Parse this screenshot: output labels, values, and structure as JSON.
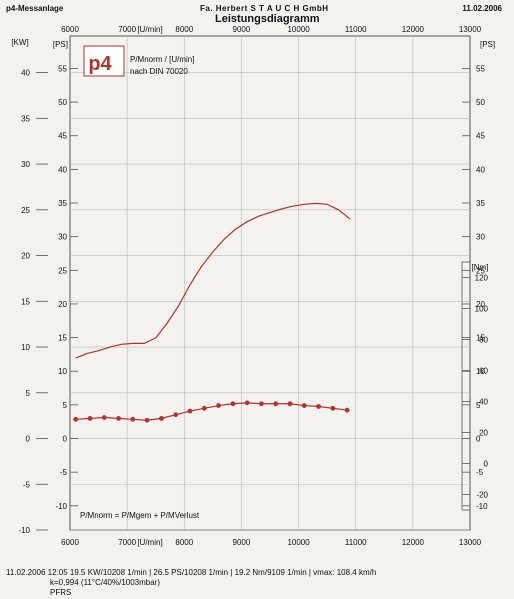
{
  "header": {
    "left": "p4-Messanlage",
    "center": "Fa. Herbert  S T A U C H  GmbH",
    "right": "11.02.2006",
    "title": "Leistungsdiagramm"
  },
  "legend_box": {
    "line1": "P/Mnorm / [U/min]",
    "line2": "nach DIN 70020",
    "logo_text": "p4"
  },
  "formula": "P/Mnorm = P/Mgem + P/MVerlust",
  "footer": {
    "line1": "11.02.2006  12:05  19.5 KW/10208 1/min  |  26.5 PS/10208 1/min  |  19.2 Nm/9109 1/min  |  vmax: 108.4 km/h",
    "line2": "k=0,994 (11°C/40%/1003mbar)",
    "line3": "PFRS"
  },
  "chart_data": {
    "type": "line",
    "x_unit_label": "[U/min]",
    "x_ticks": [
      "6000",
      "7000",
      "8000",
      "9000",
      "10000",
      "11000",
      "12000",
      "13000"
    ],
    "xlim": [
      6000,
      13000
    ],
    "left_outer_axis": {
      "label": "[KW]",
      "ticks": [
        "40",
        "35",
        "30",
        "25",
        "20",
        "15",
        "10",
        "5",
        "0",
        "-5",
        "-10"
      ],
      "ylim": [
        -10,
        44
      ]
    },
    "left_inner_axis": {
      "label": "[PS]",
      "ticks": [
        "55",
        "50",
        "45",
        "40",
        "35",
        "30",
        "25",
        "20",
        "15",
        "10",
        "5",
        "0",
        "-5",
        "-10"
      ]
    },
    "right_ps_axis": {
      "label": "[PS]",
      "ticks": [
        "55",
        "50",
        "45",
        "40",
        "35",
        "30",
        "25",
        "20",
        "15",
        "10",
        "5",
        "0",
        "-5",
        "-10"
      ]
    },
    "right_nm_axis": {
      "label": "[Nm]",
      "ticks": [
        "120",
        "100",
        "80",
        "60",
        "40",
        "20",
        "0",
        "-20"
      ]
    },
    "series": [
      {
        "name": "P/Mnorm",
        "color": "#b0352c",
        "x": [
          6100,
          6300,
          6500,
          6700,
          6900,
          7100,
          7300,
          7500,
          7700,
          7900,
          8100,
          8300,
          8500,
          8700,
          8900,
          9100,
          9300,
          9500,
          9700,
          9900,
          10100,
          10300,
          10500,
          10700,
          10900
        ],
        "y": [
          8.8,
          9.3,
          9.6,
          10.0,
          10.3,
          10.4,
          10.4,
          11.0,
          12.6,
          14.5,
          16.8,
          18.8,
          20.4,
          21.8,
          22.9,
          23.7,
          24.3,
          24.7,
          25.1,
          25.4,
          25.6,
          25.7,
          25.6,
          25.0,
          24.0
        ]
      },
      {
        "name": "M",
        "color": "#b0352c",
        "markers": true,
        "x": [
          6100,
          6350,
          6600,
          6850,
          7100,
          7350,
          7600,
          7850,
          8100,
          8350,
          8600,
          8850,
          9100,
          9350,
          9600,
          9850,
          10100,
          10350,
          10600,
          10850
        ],
        "y": [
          2.1,
          2.2,
          2.3,
          2.2,
          2.1,
          2.0,
          2.2,
          2.6,
          3.0,
          3.3,
          3.6,
          3.8,
          3.9,
          3.8,
          3.8,
          3.8,
          3.6,
          3.5,
          3.3,
          3.1
        ]
      }
    ]
  }
}
